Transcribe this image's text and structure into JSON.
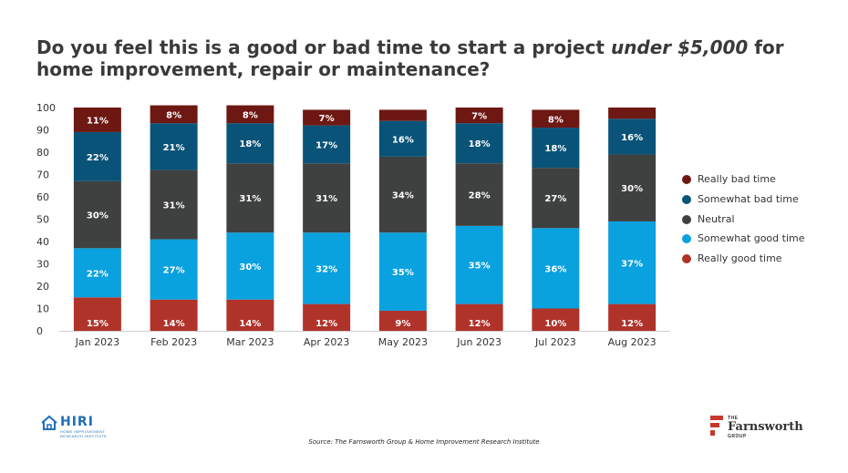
{
  "title": {
    "pre": "Do you feel this is a good or bad time to start a project ",
    "emph": "under $5,000",
    "post": " for home improvement, repair or maintenance?"
  },
  "source": "Source: The Farnsworth Group & Home Improvement Research Institute",
  "logos": {
    "hiri": {
      "name": "HIRI",
      "sub1": "HOME IMPROVEMENT",
      "sub2": "RESEARCH INSTITUTE"
    },
    "farnsworth": {
      "small_top": "THE",
      "name": "Farnsworth",
      "small_bottom": "GROUP"
    }
  },
  "chart_data": {
    "type": "bar",
    "stacked": true,
    "categories": [
      "Jan 2023",
      "Feb 2023",
      "Mar 2023",
      "Apr 2023",
      "May 2023",
      "Jun 2023",
      "Jul 2023",
      "Aug 2023"
    ],
    "ylim": [
      0,
      100
    ],
    "yticks": [
      0,
      10,
      20,
      30,
      40,
      50,
      60,
      70,
      80,
      90,
      100
    ],
    "grid": false,
    "legend_position": "right",
    "series": [
      {
        "name": "Really good time",
        "color": "#b0332a",
        "values": [
          15,
          14,
          14,
          12,
          9,
          12,
          10,
          12
        ],
        "labels": [
          "15%",
          "14%",
          "14%",
          "12%",
          "9%",
          "12%",
          "10%",
          "12%"
        ]
      },
      {
        "name": "Somewhat good time",
        "color": "#0aa1df",
        "values": [
          22,
          27,
          30,
          32,
          35,
          35,
          36,
          37
        ],
        "labels": [
          "22%",
          "27%",
          "30%",
          "32%",
          "35%",
          "35%",
          "36%",
          "37%"
        ]
      },
      {
        "name": "Neutral",
        "color": "#3f4040",
        "values": [
          30,
          31,
          31,
          31,
          34,
          28,
          27,
          30
        ],
        "labels": [
          "30%",
          "31%",
          "31%",
          "31%",
          "34%",
          "28%",
          "27%",
          "30%"
        ]
      },
      {
        "name": "Somewhat bad time",
        "color": "#0a5378",
        "values": [
          22,
          21,
          18,
          17,
          16,
          18,
          18,
          16
        ],
        "labels": [
          "22%",
          "21%",
          "18%",
          "17%",
          "16%",
          "18%",
          "18%",
          "16%"
        ]
      },
      {
        "name": "Really bad time",
        "color": "#6e1813",
        "values": [
          11,
          8,
          8,
          7,
          5,
          7,
          8,
          5
        ],
        "labels": [
          "11%",
          "8%",
          "8%",
          "7%",
          "",
          "7%",
          "8%",
          ""
        ]
      }
    ],
    "legend_order": [
      "Really bad time",
      "Somewhat bad time",
      "Neutral",
      "Somewhat good time",
      "Really good time"
    ]
  }
}
